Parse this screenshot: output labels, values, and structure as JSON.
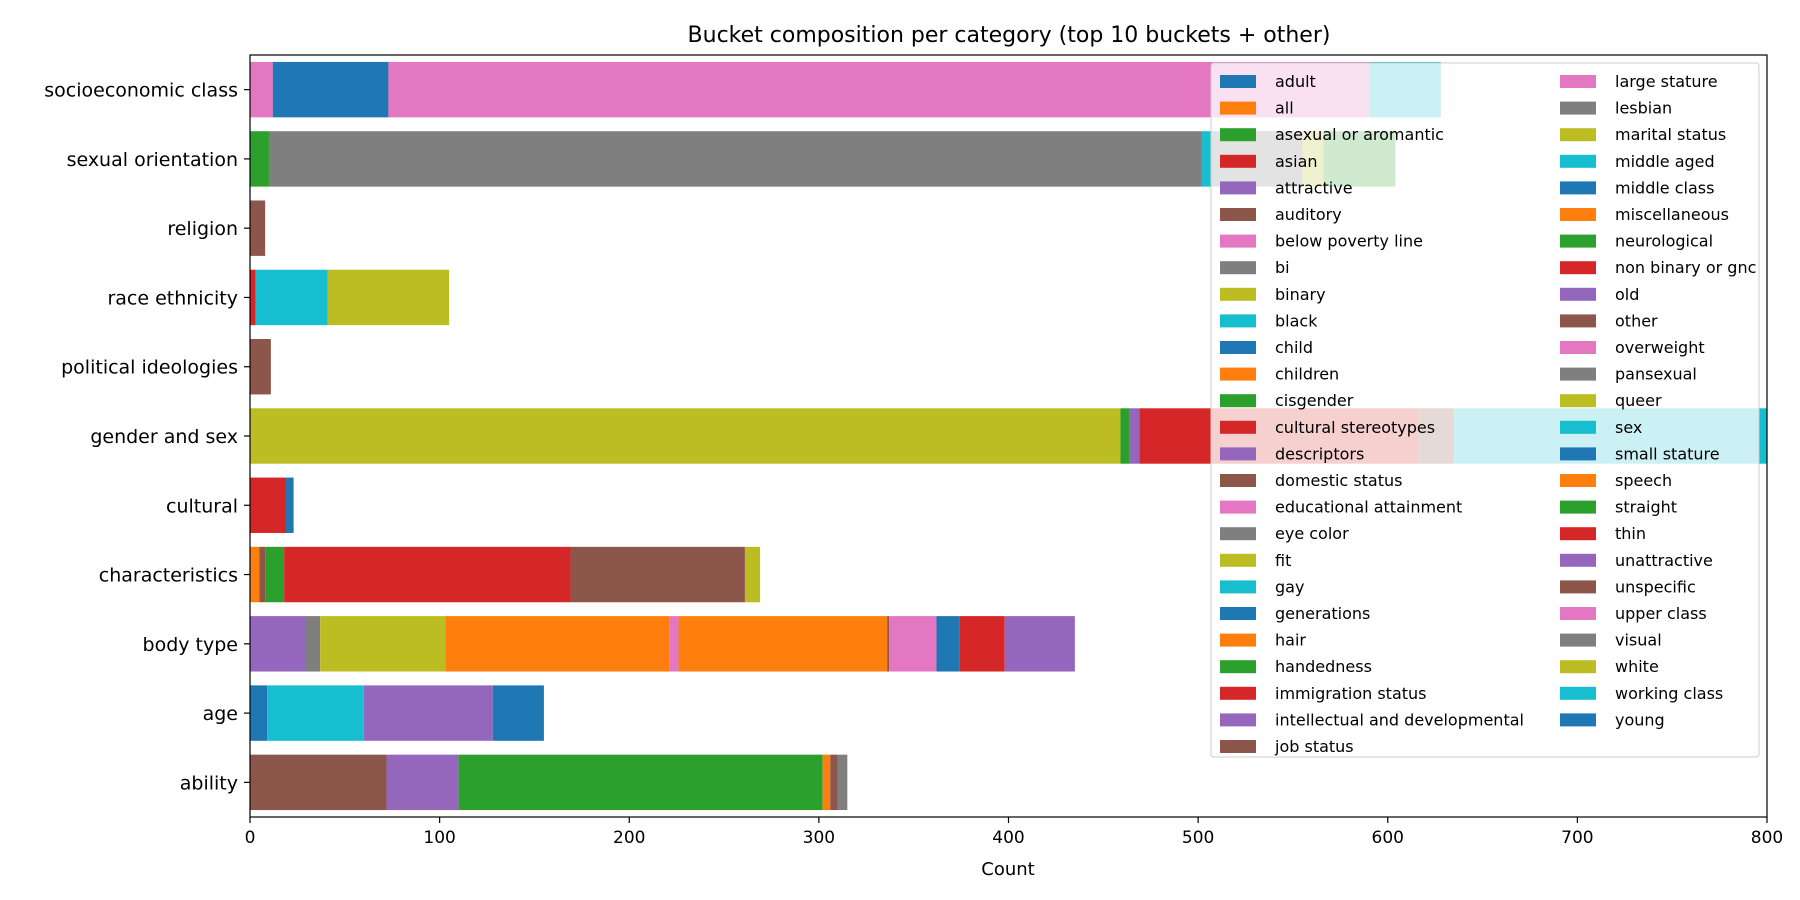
{
  "chart_data": {
    "type": "bar",
    "orientation": "horizontal",
    "stacked": true,
    "title": "Bucket composition per category (top 10 buckets + other)",
    "xlabel": "Count",
    "ylabel": "",
    "xlim": [
      0,
      800
    ],
    "xticks": [
      "0",
      "100",
      "200",
      "300",
      "400",
      "500",
      "600",
      "700",
      "800"
    ],
    "grid": false,
    "legend_position": "top-right",
    "categories": [
      "socioeconomic class",
      "sexual orientation",
      "religion",
      "race ethnicity",
      "political ideologies",
      "gender and sex",
      "cultural",
      "characteristics",
      "body type",
      "age",
      "ability"
    ],
    "palette": [
      "#1f77b4",
      "#ff7f0e",
      "#2ca02c",
      "#d62728",
      "#9467bd",
      "#8c564b",
      "#e377c2",
      "#7f7f7f",
      "#bcbd22",
      "#17becf"
    ],
    "legend": [
      "adult",
      "all",
      "asexual or aromantic",
      "asian",
      "attractive",
      "auditory",
      "below poverty line",
      "bi",
      "binary",
      "black",
      "child",
      "children",
      "cisgender",
      "cultural stereotypes",
      "descriptors",
      "domestic status",
      "educational attainment",
      "eye color",
      "fit",
      "gay",
      "generations",
      "hair",
      "handedness",
      "immigration status",
      "intellectual and developmental",
      "job status",
      "large stature",
      "lesbian",
      "marital status",
      "middle aged",
      "middle class",
      "miscellaneous",
      "neurological",
      "non binary or gnc",
      "old",
      "other",
      "overweight",
      "pansexual",
      "queer",
      "sex",
      "small stature",
      "speech",
      "straight",
      "thin",
      "unattractive",
      "unspecific",
      "upper class",
      "visual",
      "white",
      "working class",
      "young"
    ],
    "stacks": {
      "socioeconomic class": [
        [
          "educational attainment",
          12
        ],
        [
          "middle class",
          61
        ],
        [
          "below poverty line",
          517
        ],
        [
          "upper class",
          0
        ],
        [
          "working class",
          38
        ]
      ],
      "sexual orientation": [
        [
          "asexual or aromantic",
          10
        ],
        [
          "bi",
          492
        ],
        [
          "gay",
          5
        ],
        [
          "lesbian",
          48
        ],
        [
          "queer",
          11
        ],
        [
          "pansexual",
          0
        ],
        [
          "straight",
          38
        ]
      ],
      "religion": [
        [
          "other",
          8
        ]
      ],
      "race ethnicity": [
        [
          "asian",
          3
        ],
        [
          "black",
          38
        ],
        [
          "white",
          64
        ]
      ],
      "political ideologies": [
        [
          "other",
          11
        ]
      ],
      "gender and sex": [
        [
          "binary",
          459
        ],
        [
          "cisgender",
          5
        ],
        [
          "descriptors",
          5
        ],
        [
          "non binary or gnc",
          147
        ],
        [
          "other",
          19
        ],
        [
          "sex",
          161
        ],
        [
          "working class",
          4
        ]
      ],
      "cultural": [
        [
          "cultural stereotypes",
          19
        ],
        [
          "generations",
          4
        ]
      ],
      "characteristics": [
        [
          "children",
          5
        ],
        [
          "domestic status",
          3
        ],
        [
          "handedness",
          10
        ],
        [
          "immigration status",
          151
        ],
        [
          "job status",
          92
        ],
        [
          "marital status",
          8
        ]
      ],
      "body type": [
        [
          "attractive",
          29
        ],
        [
          "eye color",
          8
        ],
        [
          "fit",
          66
        ],
        [
          "hair",
          118
        ],
        [
          "large stature",
          5
        ],
        [
          "miscellaneous",
          110
        ],
        [
          "other",
          1
        ],
        [
          "overweight",
          25
        ],
        [
          "small stature",
          12
        ],
        [
          "thin",
          24
        ],
        [
          "unattractive",
          37
        ]
      ],
      "age": [
        [
          "adult",
          9
        ],
        [
          "middle aged",
          51
        ],
        [
          "old",
          68
        ],
        [
          "young",
          27
        ]
      ],
      "ability": [
        [
          "auditory",
          72
        ],
        [
          "intellectual and developmental",
          38
        ],
        [
          "neurological",
          192
        ],
        [
          "speech",
          4
        ],
        [
          "unspecific",
          4
        ],
        [
          "visual",
          5
        ]
      ]
    }
  }
}
